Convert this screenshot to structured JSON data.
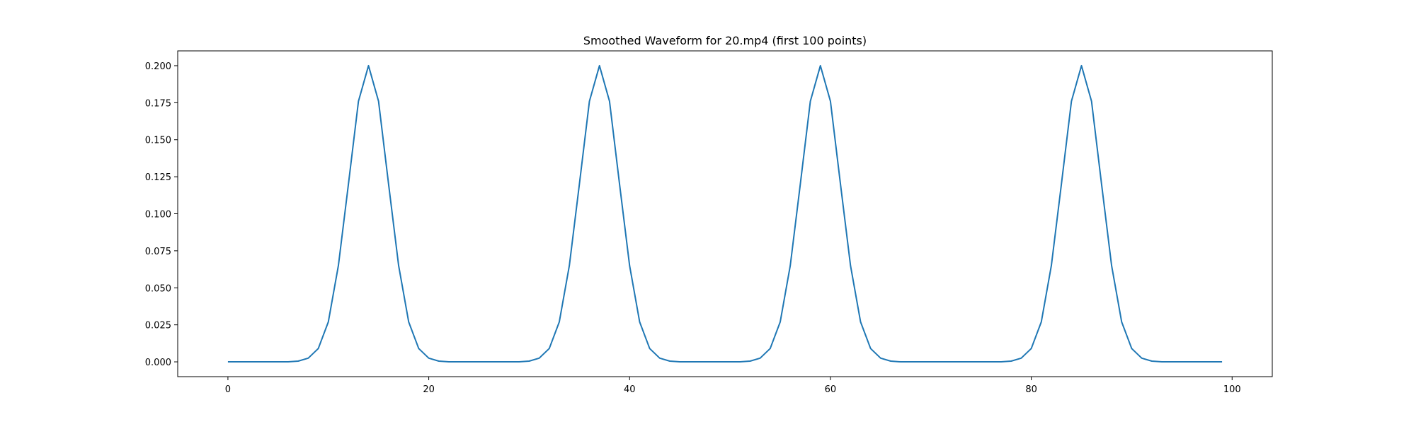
{
  "chart_data": {
    "type": "line",
    "title": "Smoothed Waveform for 20.mp4 (first 100 points)",
    "xlabel": "",
    "ylabel": "",
    "xlim": [
      -5,
      104
    ],
    "ylim": [
      -0.01,
      0.21
    ],
    "grid": false,
    "legend": "none",
    "x_ticks": [
      0,
      20,
      40,
      60,
      80,
      100
    ],
    "x_tick_labels": [
      "0",
      "20",
      "40",
      "60",
      "80",
      "100"
    ],
    "y_ticks": [
      0.0,
      0.025,
      0.05,
      0.075,
      0.1,
      0.125,
      0.15,
      0.175,
      0.2
    ],
    "y_tick_labels": [
      "0.000",
      "0.025",
      "0.050",
      "0.075",
      "0.100",
      "0.125",
      "0.150",
      "0.175",
      "0.200"
    ],
    "series": [
      {
        "color": "#1f77b4",
        "x": [
          0,
          1,
          2,
          3,
          4,
          5,
          6,
          7,
          8,
          9,
          10,
          11,
          12,
          13,
          14,
          15,
          16,
          17,
          18,
          19,
          20,
          21,
          22,
          23,
          24,
          25,
          26,
          27,
          28,
          29,
          30,
          31,
          32,
          33,
          34,
          35,
          36,
          37,
          38,
          39,
          40,
          41,
          42,
          43,
          44,
          45,
          46,
          47,
          48,
          49,
          50,
          51,
          52,
          53,
          54,
          55,
          56,
          57,
          58,
          59,
          60,
          61,
          62,
          63,
          64,
          65,
          66,
          67,
          68,
          69,
          70,
          71,
          72,
          73,
          74,
          75,
          76,
          77,
          78,
          79,
          80,
          81,
          82,
          83,
          84,
          85,
          86,
          87,
          88,
          89,
          90,
          91,
          92,
          93,
          94,
          95,
          96,
          97,
          98,
          99
        ],
        "y": [
          0.0,
          0.0,
          0.0,
          0.0,
          0.0,
          0.0,
          0.0,
          0.0005,
          0.0025,
          0.009,
          0.027,
          0.065,
          0.12,
          0.176,
          0.2,
          0.176,
          0.12,
          0.065,
          0.027,
          0.009,
          0.0025,
          0.0005,
          0.0,
          0.0,
          0.0,
          0.0,
          0.0,
          0.0,
          0.0,
          0.0,
          0.0005,
          0.0025,
          0.009,
          0.027,
          0.065,
          0.12,
          0.176,
          0.2,
          0.176,
          0.12,
          0.065,
          0.027,
          0.009,
          0.0025,
          0.0005,
          0.0,
          0.0,
          0.0,
          0.0,
          0.0,
          0.0,
          0.0,
          0.0005,
          0.0025,
          0.009,
          0.027,
          0.065,
          0.12,
          0.176,
          0.2,
          0.176,
          0.12,
          0.065,
          0.027,
          0.009,
          0.0025,
          0.0005,
          0.0,
          0.0,
          0.0,
          0.0,
          0.0,
          0.0,
          0.0,
          0.0,
          0.0,
          0.0,
          0.0,
          0.0005,
          0.0025,
          0.009,
          0.027,
          0.065,
          0.12,
          0.176,
          0.2,
          0.176,
          0.12,
          0.065,
          0.027,
          0.009,
          0.0025,
          0.0005,
          0.0,
          0.0,
          0.0,
          0.0,
          0.0,
          0.0,
          0.0
        ]
      }
    ]
  }
}
